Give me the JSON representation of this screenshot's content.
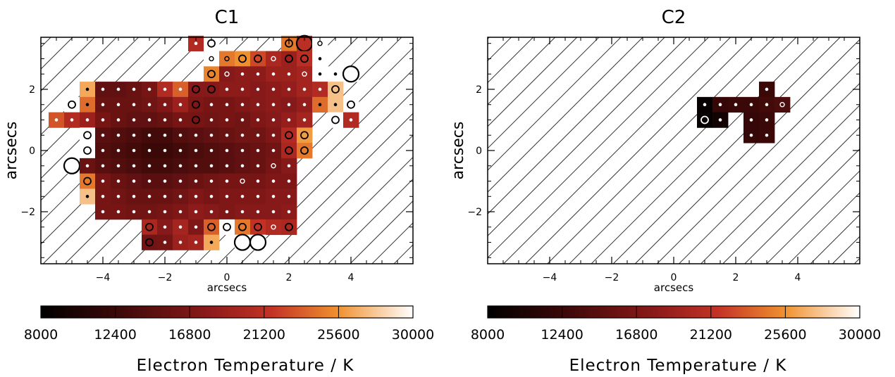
{
  "chart_data": [
    {
      "type": "heatmap",
      "title": "C1",
      "xlabel": "arcsecs",
      "ylabel": "arcsecs",
      "xlim": [
        -6.0,
        6.0
      ],
      "ylim": [
        -3.7,
        3.7
      ],
      "xticks": [
        -4,
        -2,
        0,
        2,
        4
      ],
      "yticks": [
        -2,
        0,
        2
      ],
      "pixel_size": 0.5,
      "colorbar": {
        "label": "Electron Temperature / K",
        "min": 8000,
        "max": 30000,
        "ticks": [
          8000,
          12400,
          16800,
          21200,
          25600,
          30000
        ],
        "colormap": "black-red-orange-white"
      },
      "hatched_background": true,
      "cells": [
        [
          -1,
          3.5,
          20500,
          "d"
        ],
        [
          -0.5,
          3.5,
          null,
          "o"
        ],
        [
          2,
          3.5,
          24500,
          "o"
        ],
        [
          2.5,
          3.5,
          21000,
          "L"
        ],
        [
          3,
          3.5,
          null,
          "r"
        ],
        [
          -0.5,
          3,
          30000,
          "r"
        ],
        [
          0,
          3,
          24500,
          "r"
        ],
        [
          0.5,
          3,
          25500,
          "o"
        ],
        [
          1,
          3,
          22500,
          "o"
        ],
        [
          1.5,
          3,
          20000,
          "r"
        ],
        [
          2,
          3,
          19000,
          "o"
        ],
        [
          2.5,
          3,
          21000,
          "o"
        ],
        [
          3,
          3,
          null,
          "d"
        ],
        [
          -0.5,
          2.5,
          25000,
          "o"
        ],
        [
          0,
          2.5,
          17500,
          "r"
        ],
        [
          0.5,
          2.5,
          18000,
          "d"
        ],
        [
          1,
          2.5,
          18000,
          "d"
        ],
        [
          1.5,
          2.5,
          19000,
          "d"
        ],
        [
          2,
          2.5,
          19000,
          "d"
        ],
        [
          2.5,
          2.5,
          19500,
          "r"
        ],
        [
          3,
          2.5,
          null,
          "d"
        ],
        [
          3.5,
          2.5,
          null,
          "d"
        ],
        [
          4,
          2.5,
          null,
          "L"
        ],
        [
          -4.5,
          2,
          26500,
          "d"
        ],
        [
          -4,
          2,
          15000,
          "d"
        ],
        [
          -3.5,
          2,
          15000,
          "d"
        ],
        [
          -3,
          2,
          15500,
          "d"
        ],
        [
          -2.5,
          2,
          16500,
          "d"
        ],
        [
          -2,
          2,
          20500,
          "d"
        ],
        [
          -1.5,
          2,
          23500,
          "d"
        ],
        [
          -1,
          2,
          17500,
          "o"
        ],
        [
          -0.5,
          2,
          17500,
          "o"
        ],
        [
          0,
          2,
          18000,
          "d"
        ],
        [
          0.5,
          2,
          18000,
          "d"
        ],
        [
          1,
          2,
          17500,
          "d"
        ],
        [
          1.5,
          2,
          18000,
          "d"
        ],
        [
          2,
          2,
          18500,
          "d"
        ],
        [
          2.5,
          2,
          19500,
          "d"
        ],
        [
          3,
          2,
          20500,
          "d"
        ],
        [
          3.5,
          2,
          27500,
          "o"
        ],
        [
          -5,
          1.5,
          null,
          "o"
        ],
        [
          -4.5,
          1.5,
          24000,
          "d"
        ],
        [
          -4,
          1.5,
          15500,
          "d"
        ],
        [
          -3.5,
          1.5,
          15500,
          "d"
        ],
        [
          -3,
          1.5,
          15500,
          "d"
        ],
        [
          -2.5,
          1.5,
          16000,
          "d"
        ],
        [
          -2,
          1.5,
          17000,
          "d"
        ],
        [
          -1.5,
          1.5,
          19000,
          "d"
        ],
        [
          -1,
          1.5,
          17000,
          "o"
        ],
        [
          -0.5,
          1.5,
          16500,
          "d"
        ],
        [
          0,
          1.5,
          16500,
          "d"
        ],
        [
          0.5,
          1.5,
          17000,
          "d"
        ],
        [
          1,
          1.5,
          17500,
          "d"
        ],
        [
          1.5,
          1.5,
          18000,
          "d"
        ],
        [
          2,
          1.5,
          17500,
          "d"
        ],
        [
          2.5,
          1.5,
          18500,
          "d"
        ],
        [
          3,
          1.5,
          24000,
          "d"
        ],
        [
          3.5,
          1.5,
          27500,
          "d"
        ],
        [
          4,
          1.5,
          null,
          "o"
        ],
        [
          -5.5,
          1,
          23000,
          "d"
        ],
        [
          -5,
          1,
          20500,
          "d"
        ],
        [
          -4.5,
          1,
          19000,
          "d"
        ],
        [
          -4,
          1,
          16500,
          "d"
        ],
        [
          -3.5,
          1,
          15500,
          "d"
        ],
        [
          -3,
          1,
          15000,
          "d"
        ],
        [
          -2.5,
          1,
          15000,
          "d"
        ],
        [
          -2,
          1,
          15500,
          "d"
        ],
        [
          -1.5,
          1,
          16500,
          "d"
        ],
        [
          -1,
          1,
          16500,
          "o"
        ],
        [
          -0.5,
          1,
          16000,
          "d"
        ],
        [
          0,
          1,
          16500,
          "d"
        ],
        [
          0.5,
          1,
          16000,
          "d"
        ],
        [
          1,
          1,
          17000,
          "d"
        ],
        [
          1.5,
          1,
          17500,
          "d"
        ],
        [
          2,
          1,
          18500,
          "d"
        ],
        [
          2.5,
          1,
          19500,
          "d"
        ],
        [
          3.5,
          1,
          null,
          "o"
        ],
        [
          4,
          1,
          20500,
          "d"
        ],
        [
          -4.5,
          0.5,
          null,
          "o"
        ],
        [
          -4,
          0.5,
          14500,
          "d"
        ],
        [
          -3.5,
          0.5,
          14000,
          "d"
        ],
        [
          -3,
          0.5,
          13500,
          "d"
        ],
        [
          -2.5,
          0.5,
          13000,
          "d"
        ],
        [
          -2,
          0.5,
          13000,
          "d"
        ],
        [
          -1.5,
          0.5,
          14000,
          "d"
        ],
        [
          -1,
          0.5,
          14500,
          "d"
        ],
        [
          -0.5,
          0.5,
          15000,
          "d"
        ],
        [
          0,
          0.5,
          15500,
          "d"
        ],
        [
          0.5,
          0.5,
          16000,
          "d"
        ],
        [
          1,
          0.5,
          16000,
          "d"
        ],
        [
          1.5,
          0.5,
          17000,
          "d"
        ],
        [
          2,
          0.5,
          20500,
          "o"
        ],
        [
          2.5,
          0.5,
          26000,
          "o"
        ],
        [
          -4.5,
          0,
          null,
          "o"
        ],
        [
          -4,
          0,
          14000,
          "d"
        ],
        [
          -3.5,
          0,
          13500,
          "d"
        ],
        [
          -3,
          0,
          13000,
          "d"
        ],
        [
          -2.5,
          0,
          12500,
          "d"
        ],
        [
          -2,
          0,
          12500,
          "d"
        ],
        [
          -1.5,
          0,
          13000,
          "d"
        ],
        [
          -1,
          0,
          13500,
          "d"
        ],
        [
          -0.5,
          0,
          14000,
          "d"
        ],
        [
          0,
          0,
          14500,
          "d"
        ],
        [
          0.5,
          0,
          15000,
          "d"
        ],
        [
          1,
          0,
          15500,
          "d"
        ],
        [
          1.5,
          0,
          16000,
          "d"
        ],
        [
          2,
          0,
          20000,
          "o"
        ],
        [
          2.5,
          0,
          24500,
          "o"
        ],
        [
          -5,
          -0.5,
          null,
          "L"
        ],
        [
          -4.5,
          -0.5,
          15500,
          "d"
        ],
        [
          -4,
          -0.5,
          14500,
          "d"
        ],
        [
          -3.5,
          -0.5,
          14000,
          "d"
        ],
        [
          -3,
          -0.5,
          13500,
          "d"
        ],
        [
          -2.5,
          -0.5,
          13000,
          "d"
        ],
        [
          -2,
          -0.5,
          13000,
          "d"
        ],
        [
          -1.5,
          -0.5,
          13500,
          "d"
        ],
        [
          -1,
          -0.5,
          14000,
          "d"
        ],
        [
          -0.5,
          -0.5,
          14000,
          "d"
        ],
        [
          0,
          -0.5,
          14500,
          "d"
        ],
        [
          0.5,
          -0.5,
          15000,
          "d"
        ],
        [
          1,
          -0.5,
          15500,
          "d"
        ],
        [
          1.5,
          -0.5,
          16500,
          "r"
        ],
        [
          2,
          -0.5,
          17500,
          "d"
        ],
        [
          -4.5,
          -1,
          24500,
          "o"
        ],
        [
          -4,
          -1,
          16500,
          "d"
        ],
        [
          -3.5,
          -1,
          15500,
          "d"
        ],
        [
          -3,
          -1,
          15000,
          "d"
        ],
        [
          -2.5,
          -1,
          14500,
          "d"
        ],
        [
          -2,
          -1,
          14500,
          "d"
        ],
        [
          -1.5,
          -1,
          15000,
          "d"
        ],
        [
          -1,
          -1,
          15500,
          "d"
        ],
        [
          -0.5,
          -1,
          16000,
          "d"
        ],
        [
          0,
          -1,
          16500,
          "d"
        ],
        [
          0.5,
          -1,
          16500,
          "r"
        ],
        [
          1,
          -1,
          16500,
          "d"
        ],
        [
          1.5,
          -1,
          17000,
          "d"
        ],
        [
          2,
          -1,
          17000,
          "d"
        ],
        [
          -4.5,
          -1.5,
          27500,
          "d"
        ],
        [
          -4,
          -1.5,
          16500,
          "d"
        ],
        [
          -3.5,
          -1.5,
          16000,
          "d"
        ],
        [
          -3,
          -1.5,
          15500,
          "d"
        ],
        [
          -2.5,
          -1.5,
          15500,
          "d"
        ],
        [
          -2,
          -1.5,
          15500,
          "d"
        ],
        [
          -1.5,
          -1.5,
          16000,
          "d"
        ],
        [
          -1,
          -1.5,
          17000,
          "d"
        ],
        [
          -0.5,
          -1.5,
          16500,
          "d"
        ],
        [
          0,
          -1.5,
          17000,
          "d"
        ],
        [
          0.5,
          -1.5,
          17000,
          "d"
        ],
        [
          1,
          -1.5,
          17000,
          "d"
        ],
        [
          1.5,
          -1.5,
          17500,
          "d"
        ],
        [
          2,
          -1.5,
          17500,
          "d"
        ],
        [
          -4,
          -2,
          16500,
          "d"
        ],
        [
          -3.5,
          -2,
          16500,
          "d"
        ],
        [
          -3,
          -2,
          16000,
          "d"
        ],
        [
          -2.5,
          -2,
          16000,
          "d"
        ],
        [
          -2,
          -2,
          16500,
          "d"
        ],
        [
          -1.5,
          -2,
          17000,
          "d"
        ],
        [
          -1,
          -2,
          18000,
          "d"
        ],
        [
          -0.5,
          -2,
          17500,
          "d"
        ],
        [
          0,
          -2,
          17000,
          "d"
        ],
        [
          0.5,
          -2,
          17500,
          "d"
        ],
        [
          1,
          -2,
          17500,
          "d"
        ],
        [
          1.5,
          -2,
          17500,
          "d"
        ],
        [
          2,
          -2,
          18000,
          "d"
        ],
        [
          -2.5,
          -2.5,
          20000,
          "o"
        ],
        [
          -2,
          -2.5,
          17500,
          "d"
        ],
        [
          -1.5,
          -2.5,
          19500,
          "d"
        ],
        [
          -1,
          -2.5,
          17000,
          "d"
        ],
        [
          -0.5,
          -2.5,
          23500,
          "o"
        ],
        [
          0,
          -2.5,
          null,
          "o"
        ],
        [
          0.5,
          -2.5,
          24500,
          "o"
        ],
        [
          1,
          -2.5,
          21500,
          "o"
        ],
        [
          1.5,
          -2.5,
          20500,
          "r"
        ],
        [
          2,
          -2.5,
          20000,
          "o"
        ],
        [
          -2.5,
          -3,
          16000,
          "o"
        ],
        [
          -2,
          -3,
          16500,
          "d"
        ],
        [
          -1.5,
          -3,
          19000,
          "d"
        ],
        [
          -1,
          -3,
          19500,
          "d"
        ],
        [
          -0.5,
          -3,
          26500,
          "d"
        ],
        [
          0.5,
          -3,
          null,
          "L"
        ],
        [
          1,
          -3,
          null,
          "L"
        ]
      ]
    },
    {
      "type": "heatmap",
      "title": "C2",
      "xlabel": "arcsecs",
      "ylabel": "arcsecs",
      "xlim": [
        -6.0,
        6.0
      ],
      "ylim": [
        -3.7,
        3.7
      ],
      "xticks": [
        -4,
        -2,
        0,
        2,
        4
      ],
      "yticks": [
        -2,
        0,
        2
      ],
      "pixel_size": 0.5,
      "colorbar": {
        "label": "Electron Temperature / K",
        "min": 8000,
        "max": 30000,
        "ticks": [
          8000,
          12400,
          16800,
          21200,
          25600,
          30000
        ],
        "colormap": "black-red-orange-white"
      },
      "hatched_background": true,
      "cells": [
        [
          3,
          2,
          12500,
          "d"
        ],
        [
          1,
          1.5,
          8500,
          "d"
        ],
        [
          1.5,
          1.5,
          12000,
          "d"
        ],
        [
          2,
          1.5,
          12500,
          "d"
        ],
        [
          2.5,
          1.5,
          12500,
          "d"
        ],
        [
          3,
          1.5,
          13000,
          "d"
        ],
        [
          3.5,
          1.5,
          13500,
          "r"
        ],
        [
          1,
          1,
          8500,
          "o"
        ],
        [
          1.5,
          1,
          9500,
          "d"
        ],
        [
          2.5,
          1,
          12000,
          "d"
        ],
        [
          3,
          1,
          12500,
          "d"
        ],
        [
          2.5,
          0.5,
          12000,
          "d"
        ],
        [
          3,
          0.5,
          12500,
          "d"
        ]
      ]
    }
  ]
}
